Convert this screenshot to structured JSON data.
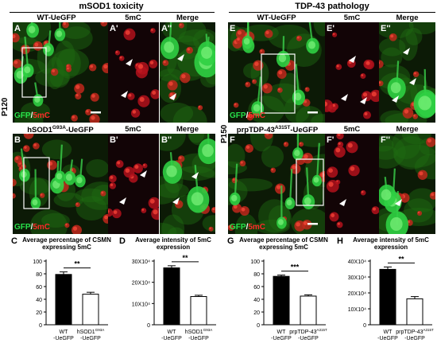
{
  "sections": [
    {
      "title": "mSOD1 toxicity"
    },
    {
      "title": "TDP-43 pathology"
    }
  ],
  "time_labels": [
    "P120",
    "P150"
  ],
  "rows": [
    {
      "heading_main": "WT-UeGFP",
      "heading_sup": "",
      "heading_tail": "",
      "col2": "5mC",
      "col3": "Merge"
    },
    {
      "heading_main": "hSOD1",
      "heading_sup": "G93A",
      "heading_tail": "-UeGFP",
      "col2": "5mC",
      "col3": "Merge"
    },
    {
      "heading_main": "WT-UeGFP",
      "heading_sup": "",
      "heading_tail": "",
      "col2": "5mC",
      "col3": "Merge"
    },
    {
      "heading_main": "prpTDP-43",
      "heading_sup": "A315T",
      "heading_tail": "-UeGFP",
      "col2": "5mC",
      "col3": "Merge"
    }
  ],
  "panel_labels": [
    "A",
    "A'",
    "A''",
    "B",
    "B'",
    "B''",
    "E",
    "E'",
    "E''",
    "F",
    "F'",
    "F''"
  ],
  "channel_label": {
    "gfp": "GFP",
    "sep": "/",
    "mc": "5mC"
  },
  "colors": {
    "gfp": "#27e04a",
    "mc": "#ff2a2a",
    "bar_wt": "#000000",
    "bar_mut": "#ffffff"
  },
  "chart_data": [
    {
      "letter": "C",
      "type": "bar",
      "title": "Average percentage of CSMN expressing 5mC",
      "yticks": [
        "0",
        "20",
        "40",
        "60",
        "80",
        "100"
      ],
      "ylim": [
        0,
        100
      ],
      "categories": [
        {
          "line1": "WT",
          "line2": "-UeGFP"
        },
        {
          "line1": "hSOD1",
          "sup": "G93A",
          "line2": "-UeGFP"
        }
      ],
      "values": [
        79,
        48
      ],
      "errors": [
        4,
        3
      ],
      "significance": "**"
    },
    {
      "letter": "D",
      "type": "bar",
      "title": "Average intensity of 5mC expression",
      "yticks": [
        "0",
        "10X10⁴",
        "20X10⁴",
        "30X10⁴"
      ],
      "ylim": [
        0,
        300000
      ],
      "categories": [
        {
          "line1": "WT",
          "line2": "-UeGFP"
        },
        {
          "line1": "hSOD1",
          "sup": "G93A",
          "line2": "-UeGFP"
        }
      ],
      "values": [
        268000,
        133000
      ],
      "errors": [
        10000,
        6000
      ],
      "significance": "**"
    },
    {
      "letter": "G",
      "type": "bar",
      "title": "Average percentage of CSMN expressing 5mC",
      "yticks": [
        "0",
        "20",
        "40",
        "60",
        "80",
        "100"
      ],
      "ylim": [
        0,
        100
      ],
      "categories": [
        {
          "line1": "WT",
          "line2": "-UeGFP"
        },
        {
          "line1": "prpTDP-43",
          "sup": "A315T",
          "line2": "-UeGFP"
        }
      ],
      "values": [
        76,
        45
      ],
      "errors": [
        2,
        2
      ],
      "significance": "***"
    },
    {
      "letter": "H",
      "type": "bar",
      "title": "Average intensity of 5mC expression",
      "yticks": [
        "0",
        "10X10⁴",
        "20X10⁴",
        "30X10⁴",
        "40X10⁴"
      ],
      "ylim": [
        0,
        400000
      ],
      "categories": [
        {
          "line1": "WT",
          "line2": "-UeGFP"
        },
        {
          "line1": "prpTDP-43",
          "sup": "A315T",
          "line2": "-UeGFP"
        }
      ],
      "values": [
        348000,
        163000
      ],
      "errors": [
        15000,
        14000
      ],
      "significance": "**"
    }
  ]
}
